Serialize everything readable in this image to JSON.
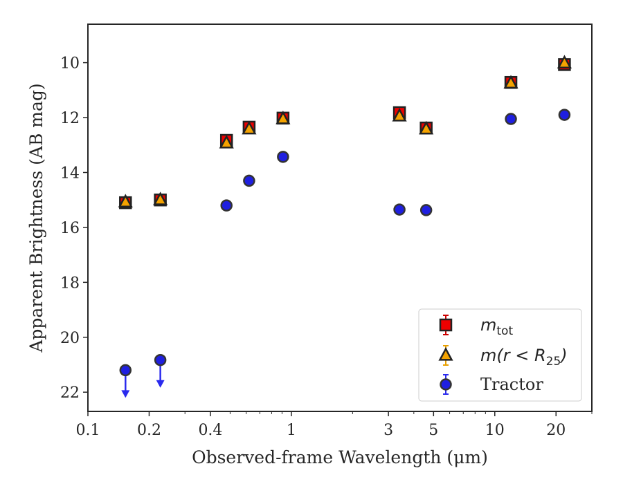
{
  "chart_data": {
    "type": "scatter",
    "xlabel": "Observed-frame Wavelength (μm)",
    "ylabel": "Apparent Brightness (AB mag)",
    "xscale": "log",
    "xlim": [
      0.1,
      30
    ],
    "ylim": [
      22.7,
      8.6
    ],
    "y_inverted": true,
    "grid": false,
    "legend_position": "lower-right",
    "x_ticks": [
      {
        "value": 0.1,
        "label": "0.1"
      },
      {
        "value": 0.2,
        "label": "0.2"
      },
      {
        "value": 0.4,
        "label": "0.4"
      },
      {
        "value": 1,
        "label": "1"
      },
      {
        "value": 3,
        "label": "3"
      },
      {
        "value": 5,
        "label": "5"
      },
      {
        "value": 10,
        "label": "10"
      },
      {
        "value": 20,
        "label": "20"
      }
    ],
    "y_ticks": [
      {
        "value": 10,
        "label": "10"
      },
      {
        "value": 12,
        "label": "12"
      },
      {
        "value": 14,
        "label": "14"
      },
      {
        "value": 16,
        "label": "16"
      },
      {
        "value": 18,
        "label": "18"
      },
      {
        "value": 20,
        "label": "20"
      },
      {
        "value": 22,
        "label": "22"
      }
    ],
    "series": [
      {
        "name": "m_tot",
        "legend_label": {
          "base": "m",
          "sub": "tot"
        },
        "marker": "square",
        "color": "#ee0000",
        "edge_color": "#222222",
        "error_color": "#cc0000",
        "points": [
          {
            "x": 0.153,
            "y": 15.1,
            "err": 0.1
          },
          {
            "x": 0.227,
            "y": 15.0,
            "err": 0.1
          },
          {
            "x": 0.48,
            "y": 12.83,
            "err": 0.1
          },
          {
            "x": 0.62,
            "y": 12.35,
            "err": 0.1
          },
          {
            "x": 0.91,
            "y": 12.02,
            "err": 0.1
          },
          {
            "x": 3.4,
            "y": 11.82,
            "err": 0.1
          },
          {
            "x": 4.6,
            "y": 12.38,
            "err": 0.1
          },
          {
            "x": 12.0,
            "y": 10.72,
            "err": 0.1
          },
          {
            "x": 22.0,
            "y": 10.07,
            "err": 0.1
          }
        ]
      },
      {
        "name": "m(r < R25)",
        "legend_label": {
          "base": "m(r < R",
          "sub": "25",
          "tail": ")"
        },
        "marker": "triangle",
        "color": "#f5a300",
        "edge_color": "#222222",
        "error_color": "#e8a000",
        "points": [
          {
            "x": 0.153,
            "y": 15.08,
            "err": 0.05
          },
          {
            "x": 0.227,
            "y": 15.0,
            "err": 0.05
          },
          {
            "x": 0.48,
            "y": 12.93,
            "err": 0.05
          },
          {
            "x": 0.62,
            "y": 12.42,
            "err": 0.05
          },
          {
            "x": 0.91,
            "y": 12.05,
            "err": 0.05
          },
          {
            "x": 3.4,
            "y": 11.95,
            "err": 0.05
          },
          {
            "x": 4.6,
            "y": 12.42,
            "err": 0.05
          },
          {
            "x": 12.0,
            "y": 10.75,
            "err": 0.05
          },
          {
            "x": 22.0,
            "y": 10.02,
            "err": 0.05
          }
        ]
      },
      {
        "name": "Tractor",
        "legend_label": {
          "base": "Tractor"
        },
        "marker": "circle",
        "color": "#1f1fe0",
        "edge_color": "#333333",
        "error_color": "#2a2aee",
        "points": [
          {
            "x": 0.153,
            "y": 21.2,
            "upper_limit": true
          },
          {
            "x": 0.227,
            "y": 20.83,
            "upper_limit": true
          },
          {
            "x": 0.48,
            "y": 15.2,
            "err": 0.05
          },
          {
            "x": 0.62,
            "y": 14.3,
            "err": 0.05
          },
          {
            "x": 0.91,
            "y": 13.43,
            "err": 0.05
          },
          {
            "x": 3.4,
            "y": 15.35,
            "err": 0.05
          },
          {
            "x": 4.6,
            "y": 15.37,
            "err": 0.05
          },
          {
            "x": 12.0,
            "y": 12.05,
            "err": 0.05
          },
          {
            "x": 22.0,
            "y": 11.9,
            "err": 0.05
          }
        ]
      }
    ]
  }
}
